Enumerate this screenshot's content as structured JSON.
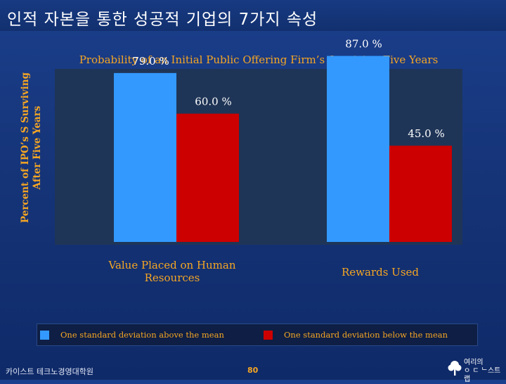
{
  "slide": {
    "title": "인적 자본을 통한 성공적 기업의 7가지 속성"
  },
  "footer": {
    "left": "카이스트 테크노경영대학원",
    "page": "80"
  },
  "logo": {
    "line1": "여리의",
    "line2": "ㅇ ㄷ ᄂ스트랩"
  },
  "colors": {
    "above_mean": "#3399ff",
    "below_mean": "#cc0000",
    "label_text": "#f5a623",
    "plot_bg": "#1f3557"
  },
  "chart_data": {
    "type": "bar",
    "title": "Probability of an Initial Public Offering Firm’s Surviving Five Years",
    "ylabel": "Percent of IPO’s S Surviving After Five Years",
    "xlabel": "",
    "categories": [
      "Value Placed on Human Resources",
      "Rewards Used"
    ],
    "series": [
      {
        "name": "One standard deviation above the mean",
        "values": [
          79.0,
          87.0
        ],
        "labels": [
          "79.0 %",
          "87.0 %"
        ]
      },
      {
        "name": "One standard deviation below the mean",
        "values": [
          60.0,
          45.0
        ],
        "labels": [
          "60.0 %",
          "45.0 %"
        ]
      }
    ],
    "ylim": [
      0,
      100
    ],
    "grid": false,
    "legend_position": "bottom"
  }
}
